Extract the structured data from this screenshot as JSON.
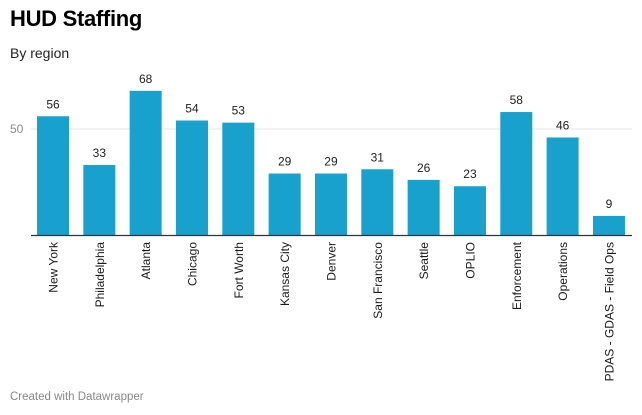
{
  "chart_data": {
    "type": "bar",
    "title": "HUD Staffing",
    "subtitle": "By region",
    "categories": [
      "New York",
      "Philadelphia",
      "Atlanta",
      "Chicago",
      "Fort Worth",
      "Kansas City",
      "Denver",
      "San Francisco",
      "Seattle",
      "OPLIO",
      "Enforcement",
      "Operations",
      "PDAS - GDAS - Field Ops"
    ],
    "values": [
      56,
      33,
      68,
      54,
      53,
      29,
      29,
      31,
      26,
      23,
      58,
      46,
      9
    ],
    "ylim": [
      0,
      75
    ],
    "yticks": [
      50
    ],
    "grid": true,
    "xlabel": "",
    "ylabel": "",
    "bar_color": "#18a1cd",
    "data_labels": true
  },
  "footer": {
    "credit": "Created with Datawrapper"
  }
}
